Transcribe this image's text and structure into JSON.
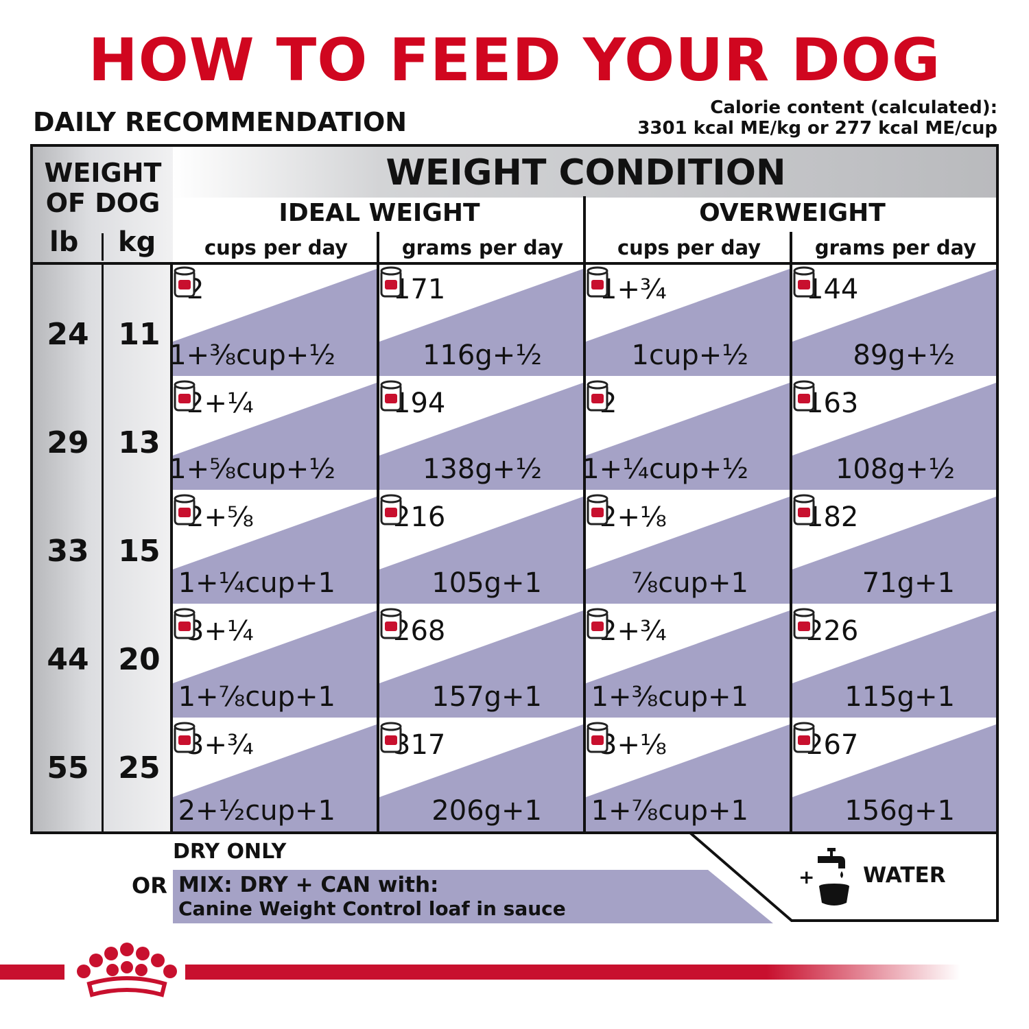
{
  "title": "HOW TO FEED YOUR DOG",
  "subheading": "DAILY RECOMMENDATION",
  "calorie": {
    "line1": "Calorie content (calculated):",
    "line2": "3301 kcal ME/kg or 277 kcal ME/cup"
  },
  "table": {
    "weight_header": "WEIGHT OF DOG",
    "lb": "lb",
    "kg": "kg",
    "condition_header": "WEIGHT CONDITION",
    "ideal": "IDEAL WEIGHT",
    "overweight": "OVERWEIGHT",
    "cups_label": "cups per day",
    "grams_label": "grams per day",
    "rows": [
      {
        "lb": "24",
        "kg": "11",
        "cells": [
          {
            "main": "2",
            "mix": "1+⅜cup+½"
          },
          {
            "main": "171",
            "mix": "116g+½"
          },
          {
            "main": "1+¾",
            "mix": "1cup+½"
          },
          {
            "main": "144",
            "mix": "89g+½"
          }
        ]
      },
      {
        "lb": "29",
        "kg": "13",
        "cells": [
          {
            "main": "2+¼",
            "mix": "1+⅝cup+½"
          },
          {
            "main": "194",
            "mix": "138g+½"
          },
          {
            "main": "2",
            "mix": "1+¼cup+½"
          },
          {
            "main": "163",
            "mix": "108g+½"
          }
        ]
      },
      {
        "lb": "33",
        "kg": "15",
        "cells": [
          {
            "main": "2+⅝",
            "mix": "1+¼cup+1"
          },
          {
            "main": "216",
            "mix": "105g+1"
          },
          {
            "main": "2+⅛",
            "mix": "⅞cup+1"
          },
          {
            "main": "182",
            "mix": "71g+1"
          }
        ]
      },
      {
        "lb": "44",
        "kg": "20",
        "cells": [
          {
            "main": "3+¼",
            "mix": "1+⅞cup+1"
          },
          {
            "main": "268",
            "mix": "157g+1"
          },
          {
            "main": "2+¾",
            "mix": "1+⅜cup+1"
          },
          {
            "main": "226",
            "mix": "115g+1"
          }
        ]
      },
      {
        "lb": "55",
        "kg": "25",
        "cells": [
          {
            "main": "3+¾",
            "mix": "2+½cup+1"
          },
          {
            "main": "317",
            "mix": "206g+1"
          },
          {
            "main": "3+⅛",
            "mix": "1+⅞cup+1"
          },
          {
            "main": "267",
            "mix": "156g+1"
          }
        ]
      }
    ]
  },
  "legend": {
    "dry_only": "DRY ONLY",
    "or": "OR",
    "mix_label": "MIX: DRY + CAN with:",
    "mix_product": "Canine Weight Control loaf in sauce",
    "plus": "+",
    "water": "WATER"
  },
  "icons": {
    "can": "can-icon",
    "tap": "water-tap-icon",
    "brand": "crown-logo-icon"
  },
  "colors": {
    "title_red": "#d0061f",
    "mix_purple": "#a5a2c6",
    "brand_red": "#c8102e"
  }
}
